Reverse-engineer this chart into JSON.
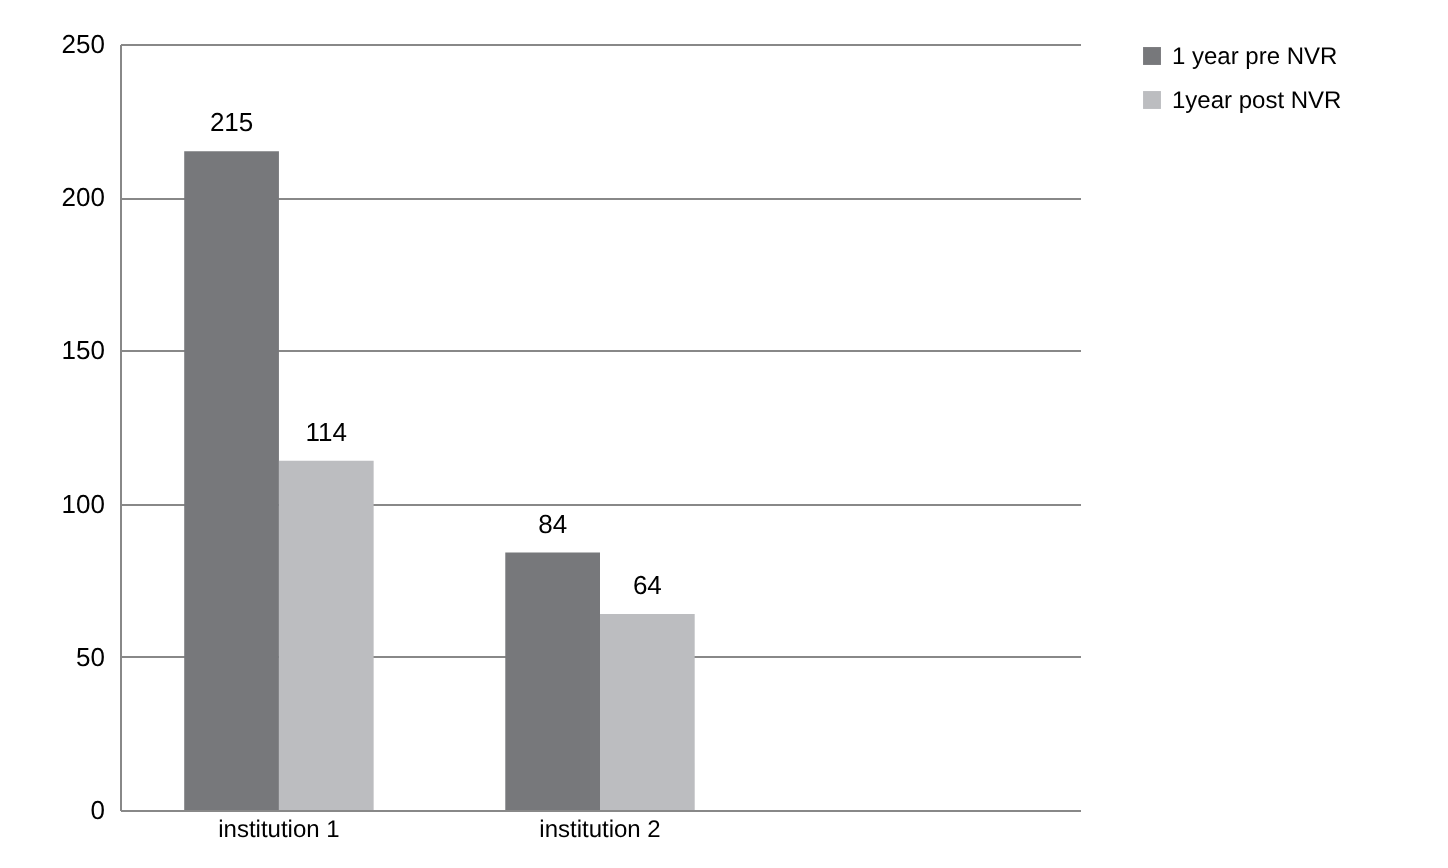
{
  "chart_data": {
    "type": "bar",
    "categories": [
      "institution 1",
      "institution 2",
      null
    ],
    "series": [
      {
        "name": "1 year pre NVR",
        "color": "#77787b",
        "values": [
          215,
          84,
          null
        ]
      },
      {
        "name": "1year post NVR",
        "color": "#bcbdc0",
        "values": [
          114,
          64,
          null
        ]
      }
    ],
    "ylim": [
      0,
      250
    ],
    "yticks": [
      0,
      50,
      100,
      150,
      200,
      250
    ],
    "grid": "y",
    "legend": "right",
    "data_labels": true
  }
}
